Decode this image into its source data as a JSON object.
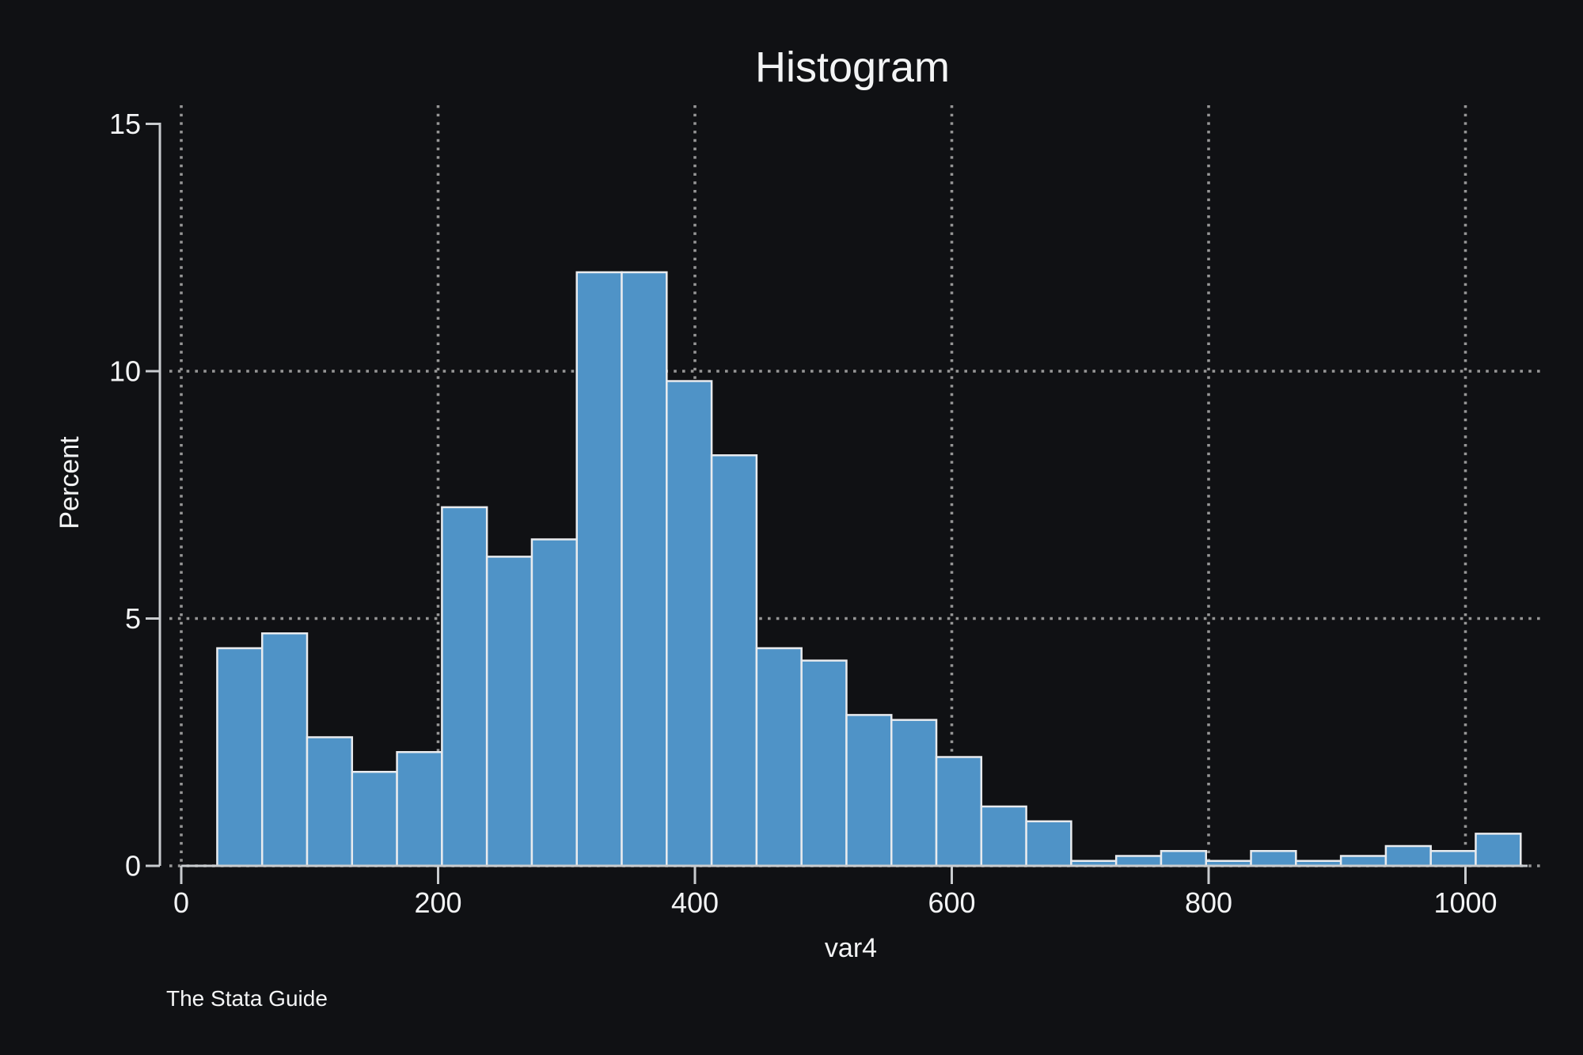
{
  "title": "Histogram",
  "watermark": "The Stata Guide",
  "colors": {
    "background": "#101114",
    "bar_fill": "#4f93c7",
    "bar_stroke": "#e9ebee",
    "axis": "#c9cccf",
    "text": "#f3f4f5",
    "grid": "#969696"
  },
  "chart_data": {
    "type": "bar",
    "subtype": "histogram",
    "title": "Histogram",
    "xlabel": "var4",
    "ylabel": "Percent",
    "bin_start": 28,
    "bin_width": 35,
    "values_percent": [
      4.4,
      4.7,
      2.6,
      1.9,
      2.3,
      7.25,
      6.25,
      6.6,
      12,
      12,
      9.8,
      8.3,
      4.4,
      4.15,
      3.05,
      2.95,
      2.2,
      1.2,
      0.9,
      0.1,
      0.2,
      0.3,
      0.1,
      0.3,
      0.1,
      0.2,
      0.4,
      0.3,
      0.65
    ],
    "xlim": [
      0,
      1062
    ],
    "ylim": [
      0,
      15
    ],
    "xticks": [
      0,
      200,
      400,
      600,
      800,
      1000
    ],
    "yticks": [
      0,
      5,
      10,
      15
    ],
    "grid": "dotted",
    "legend": "none"
  }
}
